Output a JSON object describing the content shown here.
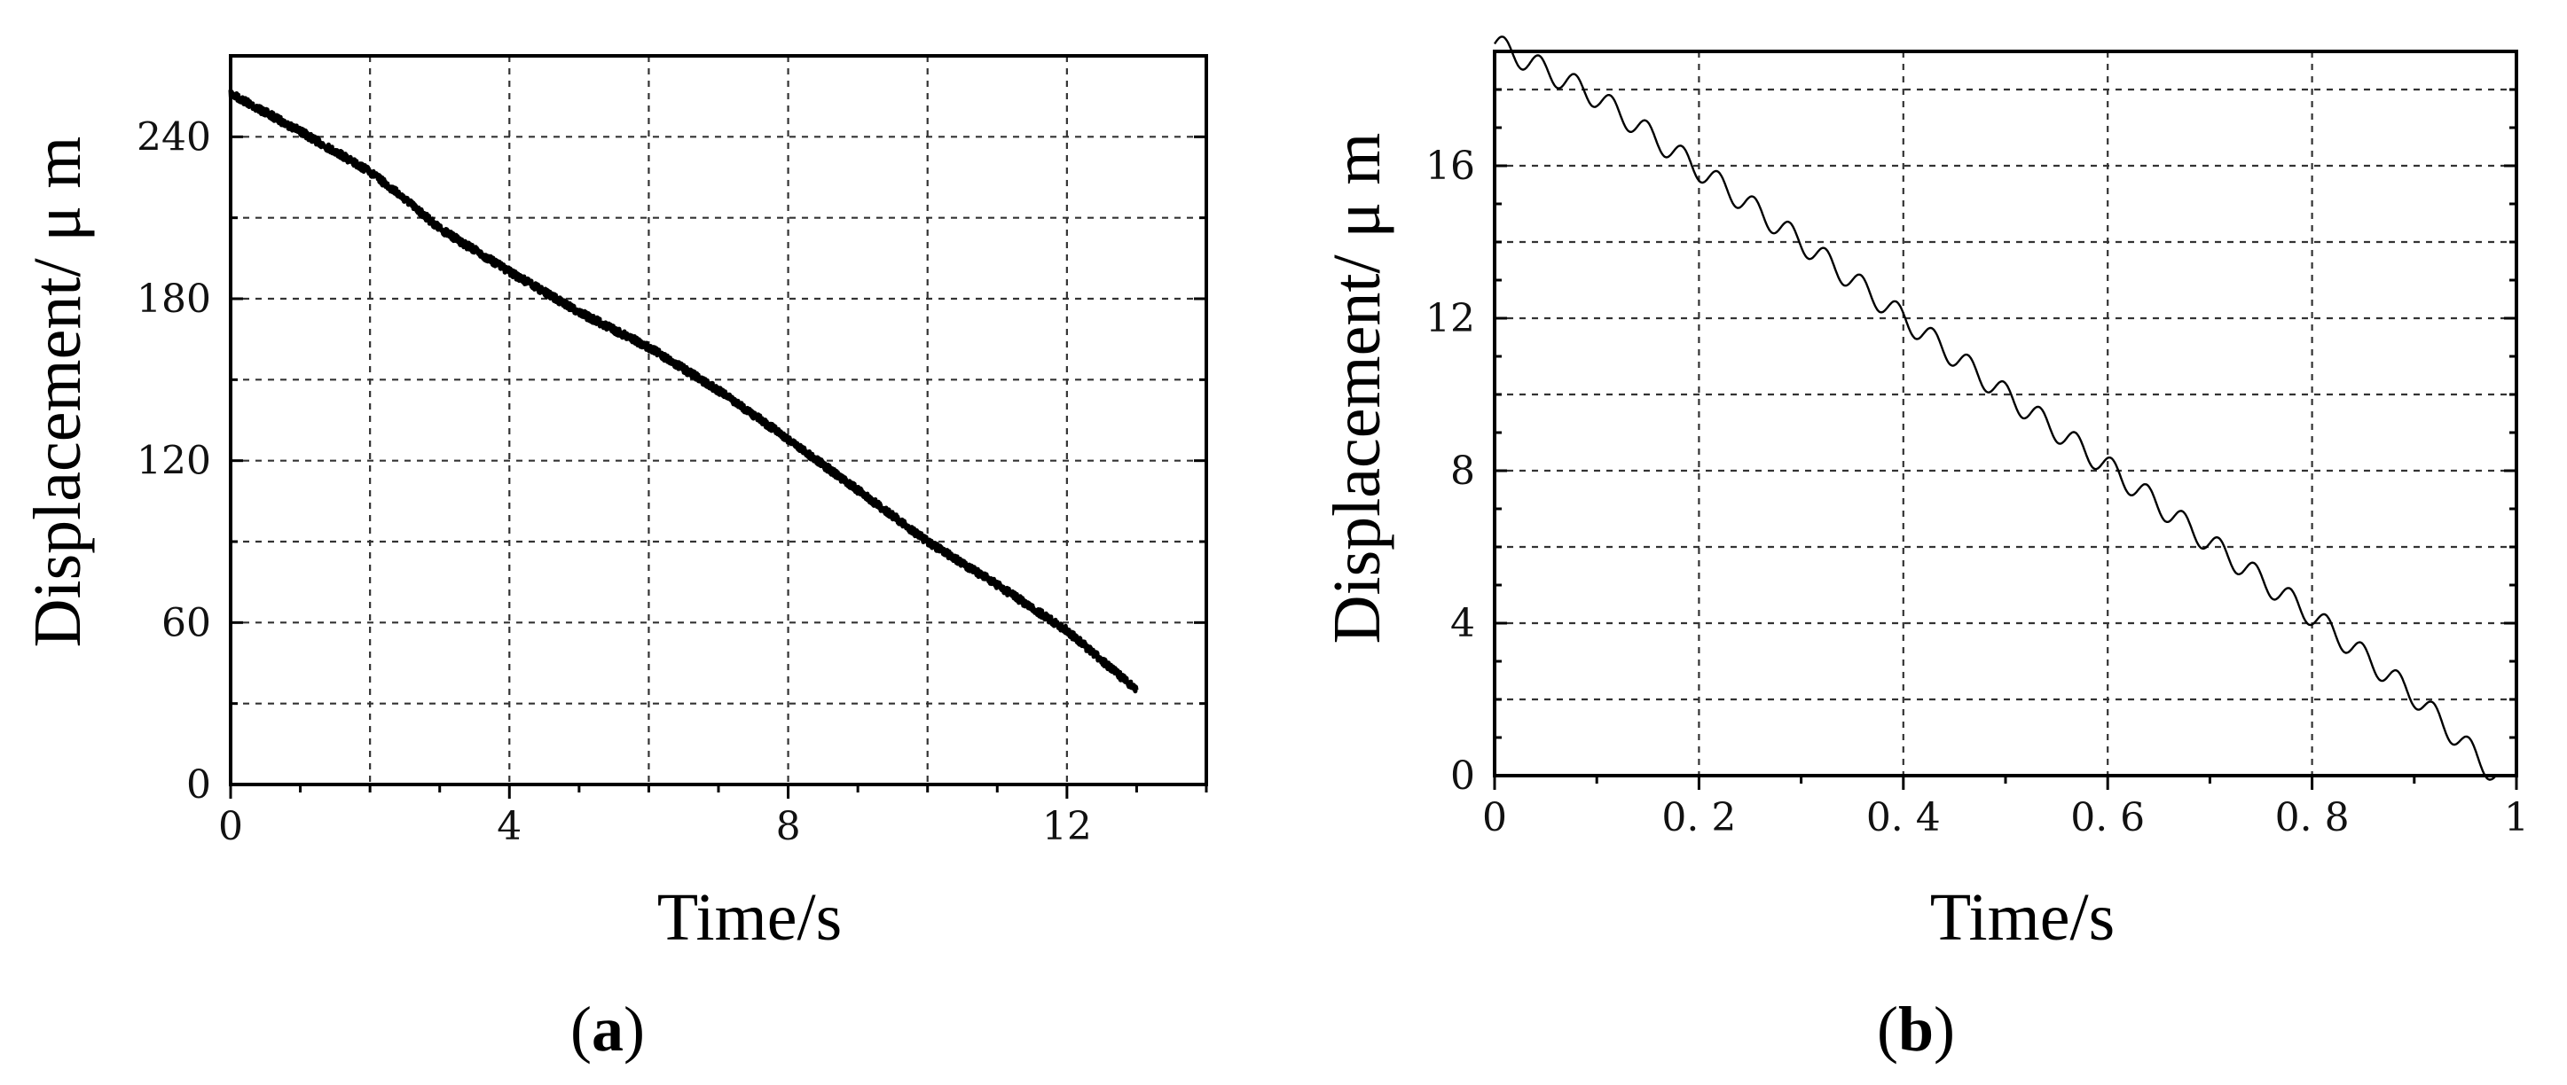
{
  "chart_data": [
    {
      "type": "line",
      "panel_label": "a",
      "xlabel": "Time/s",
      "ylabel": "Displacement/ μ m",
      "xlim": [
        0,
        14
      ],
      "ylim": [
        0,
        270
      ],
      "xticks": [
        0,
        4,
        8,
        12
      ],
      "xtick_labels": [
        "0",
        "4",
        "8",
        "12"
      ],
      "yticks": [
        0,
        60,
        120,
        180,
        240
      ],
      "ytick_labels": [
        "0",
        "60",
        "120",
        "180",
        "240"
      ],
      "xgrid": [
        2,
        4,
        6,
        8,
        10,
        12
      ],
      "ygrid": [
        30,
        60,
        90,
        120,
        150,
        180,
        210,
        240
      ],
      "grid": true,
      "line_color": "#000000",
      "series": [
        {
          "x": [
            0,
            1,
            2,
            2.5,
            3,
            4,
            5,
            6,
            7,
            8,
            9,
            10,
            11,
            12,
            13
          ],
          "values": [
            256,
            242,
            227,
            217,
            206,
            190,
            175,
            162,
            146,
            128,
            109,
            90,
            74,
            57,
            35
          ]
        }
      ]
    },
    {
      "type": "line",
      "panel_label": "b",
      "xlabel": "Time/s",
      "ylabel": "Displacement/ μ m",
      "xlim": [
        0,
        1
      ],
      "ylim": [
        0,
        19
      ],
      "xticks": [
        0,
        0.2,
        0.4,
        0.6,
        0.8,
        1
      ],
      "xtick_labels": [
        "0",
        "0. 2",
        "0. 4",
        "0. 6",
        "0. 8",
        "1"
      ],
      "yticks": [
        0,
        4,
        8,
        12,
        16
      ],
      "ytick_labels": [
        "0",
        "4",
        "8",
        "12",
        "16"
      ],
      "xgrid": [
        0.2,
        0.4,
        0.6,
        0.8
      ],
      "ygrid": [
        2,
        4,
        6,
        8,
        10,
        12,
        14,
        16,
        18
      ],
      "grid": true,
      "line_color": "#000000",
      "series": [
        {
          "x": [
            0,
            0.1,
            0.2,
            0.3,
            0.4,
            0.5,
            0.6,
            0.7,
            0.8,
            0.9,
            0.98
          ],
          "values": [
            19.2,
            17.8,
            15.9,
            14.0,
            12.0,
            10.0,
            8.1,
            6.1,
            4.2,
            2.1,
            0.0
          ],
          "ripple_amplitude": 0.3,
          "ripple_period": 0.035
        }
      ]
    }
  ]
}
